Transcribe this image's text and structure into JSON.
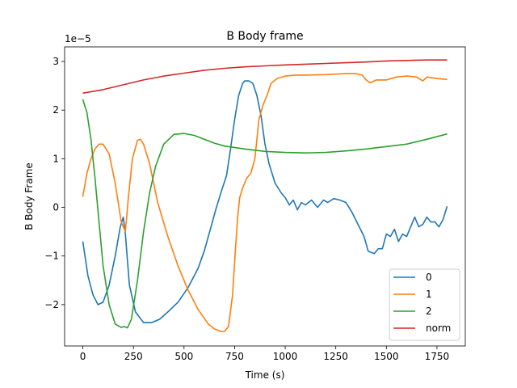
{
  "chart_data": {
    "type": "line",
    "title": "B Body frame",
    "xlabel": "Time (s)",
    "ylabel": "B Body Frame",
    "y_offset_text": "1e−5",
    "xlim": [
      -90,
      1890
    ],
    "ylim": [
      -2.85,
      3.3
    ],
    "xticks": [
      0,
      250,
      500,
      750,
      1000,
      1250,
      1500,
      1750
    ],
    "yticks": [
      -2,
      -1,
      0,
      1,
      2,
      3
    ],
    "grid": false,
    "legend_position": "lower right",
    "series": [
      {
        "name": "0",
        "color": "#1f77b4",
        "x": [
          0,
          25,
          50,
          75,
          100,
          130,
          160,
          185,
          200,
          210,
          230,
          260,
          300,
          340,
          380,
          420,
          470,
          520,
          570,
          600,
          630,
          660,
          690,
          710,
          730,
          750,
          770,
          790,
          800,
          820,
          840,
          860,
          880,
          900,
          920,
          950,
          980,
          1000,
          1020,
          1040,
          1060,
          1080,
          1100,
          1130,
          1160,
          1190,
          1210,
          1240,
          1270,
          1300,
          1330,
          1360,
          1390,
          1410,
          1440,
          1460,
          1480,
          1500,
          1520,
          1540,
          1560,
          1580,
          1600,
          1620,
          1640,
          1660,
          1680,
          1700,
          1720,
          1740,
          1760,
          1780,
          1800
        ],
        "values": [
          -0.7,
          -1.4,
          -1.8,
          -2.0,
          -1.95,
          -1.6,
          -1.0,
          -0.4,
          -0.2,
          -0.55,
          -1.6,
          -2.15,
          -2.37,
          -2.37,
          -2.3,
          -2.15,
          -1.95,
          -1.65,
          -1.25,
          -0.9,
          -0.45,
          0.0,
          0.4,
          0.65,
          1.2,
          1.8,
          2.3,
          2.55,
          2.6,
          2.6,
          2.55,
          2.3,
          1.9,
          1.3,
          0.9,
          0.5,
          0.3,
          0.2,
          0.05,
          0.15,
          -0.05,
          0.1,
          0.05,
          0.15,
          0.0,
          0.15,
          0.1,
          0.18,
          0.15,
          0.1,
          -0.1,
          -0.35,
          -0.6,
          -0.9,
          -0.95,
          -0.85,
          -0.85,
          -0.55,
          -0.6,
          -0.45,
          -0.7,
          -0.55,
          -0.6,
          -0.4,
          -0.2,
          -0.4,
          -0.35,
          -0.2,
          -0.3,
          -0.3,
          -0.4,
          -0.25,
          0.02
        ]
      },
      {
        "name": "1",
        "color": "#ff7f0e",
        "x": [
          0,
          20,
          40,
          60,
          80,
          100,
          130,
          160,
          190,
          210,
          225,
          245,
          270,
          285,
          300,
          330,
          370,
          420,
          470,
          520,
          570,
          620,
          650,
          680,
          700,
          720,
          740,
          755,
          765,
          775,
          790,
          810,
          830,
          850,
          870,
          890,
          910,
          930,
          960,
          1000,
          1050,
          1100,
          1200,
          1300,
          1350,
          1380,
          1400,
          1420,
          1450,
          1480,
          1500,
          1550,
          1600,
          1650,
          1680,
          1700,
          1750,
          1800
        ],
        "values": [
          0.22,
          0.7,
          1.0,
          1.2,
          1.3,
          1.3,
          1.1,
          0.5,
          -0.3,
          -0.5,
          0.2,
          1.0,
          1.38,
          1.4,
          1.3,
          0.9,
          0.1,
          -0.6,
          -1.2,
          -1.7,
          -2.1,
          -2.4,
          -2.5,
          -2.55,
          -2.55,
          -2.45,
          -1.8,
          -0.8,
          -0.2,
          0.2,
          0.4,
          0.6,
          0.7,
          1.0,
          1.8,
          2.1,
          2.3,
          2.55,
          2.65,
          2.7,
          2.72,
          2.72,
          2.73,
          2.75,
          2.75,
          2.72,
          2.62,
          2.56,
          2.62,
          2.62,
          2.62,
          2.68,
          2.7,
          2.68,
          2.6,
          2.68,
          2.65,
          2.63
        ]
      },
      {
        "name": "2",
        "color": "#2ca02c",
        "x": [
          0,
          20,
          40,
          60,
          80,
          100,
          130,
          160,
          190,
          205,
          220,
          240,
          270,
          300,
          330,
          360,
          400,
          450,
          500,
          550,
          600,
          650,
          700,
          800,
          900,
          1000,
          1100,
          1200,
          1300,
          1400,
          1500,
          1600,
          1700,
          1800
        ],
        "values": [
          2.22,
          1.95,
          1.4,
          0.6,
          -0.3,
          -1.2,
          -2.0,
          -2.4,
          -2.47,
          -2.45,
          -2.48,
          -2.3,
          -1.5,
          -0.5,
          0.3,
          0.85,
          1.3,
          1.5,
          1.52,
          1.48,
          1.4,
          1.32,
          1.26,
          1.2,
          1.15,
          1.13,
          1.12,
          1.13,
          1.16,
          1.2,
          1.25,
          1.3,
          1.4,
          1.51
        ]
      },
      {
        "name": "norm",
        "color": "#d62728",
        "x": [
          0,
          100,
          200,
          300,
          400,
          500,
          600,
          700,
          800,
          900,
          1000,
          1100,
          1200,
          1300,
          1400,
          1500,
          1600,
          1700,
          1800
        ],
        "values": [
          2.35,
          2.42,
          2.52,
          2.62,
          2.7,
          2.76,
          2.82,
          2.86,
          2.89,
          2.91,
          2.93,
          2.945,
          2.96,
          2.975,
          2.99,
          3.01,
          3.02,
          3.03,
          3.03
        ]
      }
    ]
  }
}
